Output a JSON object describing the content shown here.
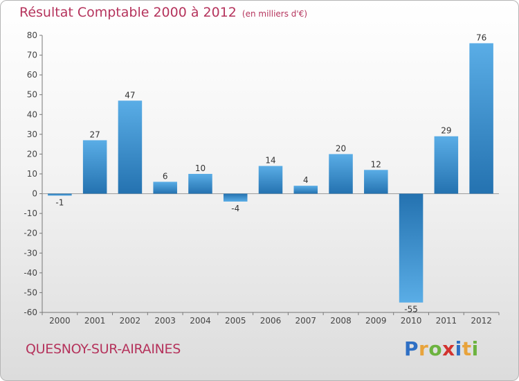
{
  "title": "Résultat Comptable 2000 à 2012",
  "unit_note": "(en milliers d'€)",
  "place": "QUESNOY-SUR-AIRAINES",
  "brand": {
    "letters": [
      "P",
      "r",
      "o",
      "x",
      "i",
      "t",
      "i"
    ],
    "colors": [
      "#2e6fc4",
      "#e8a33b",
      "#6cb33f",
      "#d2332f",
      "#2e6fc4",
      "#e8a33b",
      "#6cb33f"
    ]
  },
  "colors": {
    "bar_light": "#5aade6",
    "bar_dark": "#2472b0",
    "title": "#b5335c"
  },
  "chart_data": {
    "type": "bar",
    "categories": [
      "2000",
      "2001",
      "2002",
      "2003",
      "2004",
      "2005",
      "2006",
      "2007",
      "2008",
      "2009",
      "2010",
      "2011",
      "2012"
    ],
    "values": [
      -1,
      27,
      47,
      6,
      10,
      -4,
      14,
      4,
      20,
      12,
      -55,
      29,
      76
    ],
    "ylim": [
      -60,
      80
    ],
    "yticks": [
      80,
      70,
      60,
      50,
      40,
      30,
      20,
      10,
      0,
      -10,
      -20,
      -30,
      -40,
      -50,
      -60
    ],
    "grid": false
  }
}
